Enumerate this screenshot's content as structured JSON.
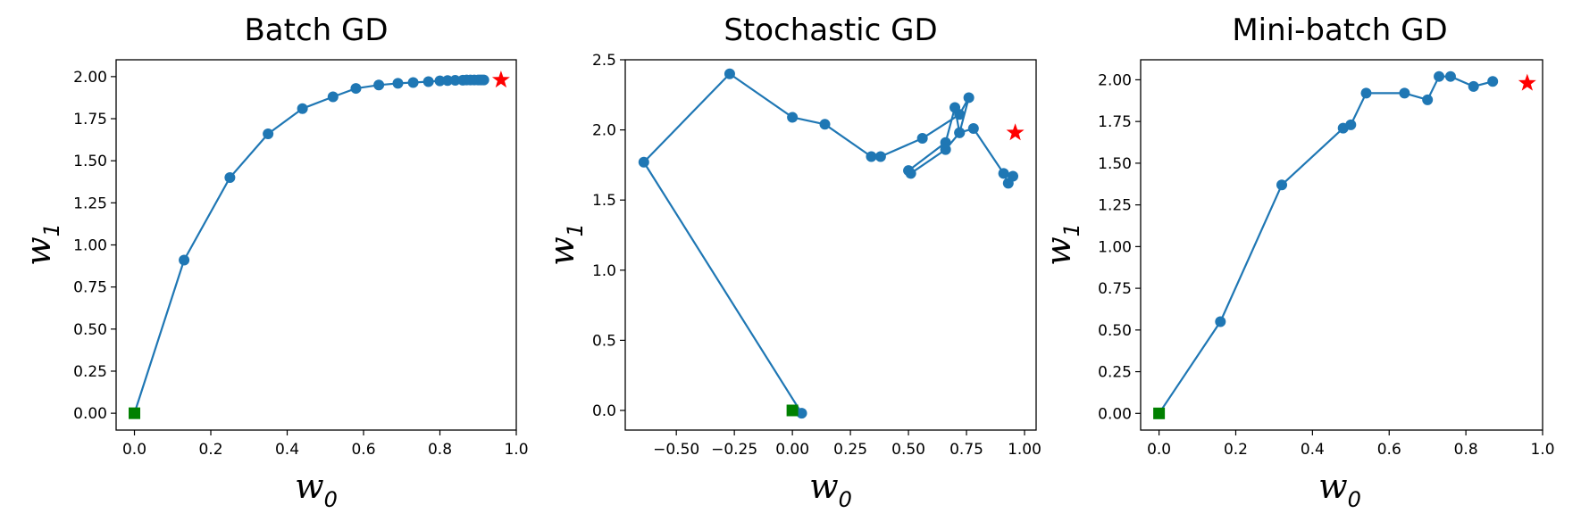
{
  "chart_data": [
    {
      "type": "line",
      "title": "Batch GD",
      "xlabel": "w",
      "xlabel_subscript": "0",
      "ylabel": "w",
      "ylabel_subscript": "1",
      "xlim": [
        -0.048,
        1.0
      ],
      "ylim": [
        -0.1,
        2.1
      ],
      "xticks": [
        0.0,
        0.2,
        0.4,
        0.6,
        0.8,
        1.0
      ],
      "xtick_labels": [
        "0.0",
        "0.2",
        "0.4",
        "0.6",
        "0.8",
        "1.0"
      ],
      "yticks": [
        0.0,
        0.25,
        0.5,
        0.75,
        1.0,
        1.25,
        1.5,
        1.75,
        2.0
      ],
      "ytick_labels": [
        "0.00",
        "0.25",
        "0.50",
        "0.75",
        "1.00",
        "1.25",
        "1.50",
        "1.75",
        "2.00"
      ],
      "series": [
        {
          "x": [
            0.0,
            0.13,
            0.25,
            0.35,
            0.44,
            0.52,
            0.58,
            0.64,
            0.69,
            0.73,
            0.77,
            0.8,
            0.82,
            0.84,
            0.86,
            0.87,
            0.88,
            0.89,
            0.9,
            0.905,
            0.91,
            0.915
          ],
          "y": [
            0.0,
            0.91,
            1.4,
            1.66,
            1.81,
            1.88,
            1.93,
            1.95,
            1.96,
            1.965,
            1.97,
            1.975,
            1.977,
            1.978,
            1.979,
            1.98,
            1.98,
            1.98,
            1.98,
            1.98,
            1.98,
            1.98
          ],
          "color": "#1f77b4"
        }
      ],
      "start_point": {
        "x": 0.0,
        "y": 0.0,
        "color": "#008000",
        "marker": "square"
      },
      "optimum": {
        "x": 0.96,
        "y": 1.98,
        "color": "#ff0000",
        "marker": "star"
      }
    },
    {
      "type": "line",
      "title": "Stochastic GD",
      "xlabel": "w",
      "xlabel_subscript": "0",
      "ylabel": "w",
      "ylabel_subscript": "1",
      "xlim": [
        -0.72,
        1.05
      ],
      "ylim": [
        -0.14,
        2.5
      ],
      "xticks": [
        -0.5,
        -0.25,
        0.0,
        0.25,
        0.5,
        0.75,
        1.0
      ],
      "xtick_labels": [
        "−0.50",
        "−0.25",
        "0.00",
        "0.25",
        "0.50",
        "0.75",
        "1.00"
      ],
      "yticks": [
        0.0,
        0.5,
        1.0,
        1.5,
        2.0,
        2.5
      ],
      "ytick_labels": [
        "0.0",
        "0.5",
        "1.0",
        "1.5",
        "2.0",
        "2.5"
      ],
      "series": [
        {
          "x": [
            0.0,
            0.04,
            -0.64,
            -0.27,
            0.0,
            0.14,
            0.34,
            0.38,
            0.56,
            0.72,
            0.76,
            0.72,
            0.7,
            0.66,
            0.5,
            0.51,
            0.66,
            0.72,
            0.78,
            0.91,
            0.93,
            0.95
          ],
          "y": [
            0.0,
            -0.02,
            1.77,
            2.4,
            2.09,
            2.04,
            1.81,
            1.81,
            1.94,
            2.11,
            2.23,
            1.98,
            2.16,
            1.91,
            1.71,
            1.69,
            1.86,
            1.98,
            2.01,
            1.69,
            1.62,
            1.67
          ],
          "color": "#1f77b4"
        }
      ],
      "start_point": {
        "x": 0.0,
        "y": 0.0,
        "color": "#008000",
        "marker": "square"
      },
      "optimum": {
        "x": 0.96,
        "y": 1.98,
        "color": "#ff0000",
        "marker": "star"
      }
    },
    {
      "type": "line",
      "title": "Mini-batch GD",
      "xlabel": "w",
      "xlabel_subscript": "0",
      "ylabel": "w",
      "ylabel_subscript": "1",
      "xlim": [
        -0.048,
        1.0
      ],
      "ylim": [
        -0.1,
        2.12
      ],
      "xticks": [
        0.0,
        0.2,
        0.4,
        0.6,
        0.8,
        1.0
      ],
      "xtick_labels": [
        "0.0",
        "0.2",
        "0.4",
        "0.6",
        "0.8",
        "1.0"
      ],
      "yticks": [
        0.0,
        0.25,
        0.5,
        0.75,
        1.0,
        1.25,
        1.5,
        1.75,
        2.0
      ],
      "ytick_labels": [
        "0.00",
        "0.25",
        "0.50",
        "0.75",
        "1.00",
        "1.25",
        "1.50",
        "1.75",
        "2.00"
      ],
      "series": [
        {
          "x": [
            0.0,
            0.16,
            0.32,
            0.48,
            0.5,
            0.54,
            0.64,
            0.7,
            0.73,
            0.76,
            0.82,
            0.87
          ],
          "y": [
            0.0,
            0.55,
            1.37,
            1.71,
            1.73,
            1.92,
            1.92,
            1.88,
            2.02,
            2.02,
            1.96,
            1.99
          ],
          "color": "#1f77b4"
        }
      ],
      "start_point": {
        "x": 0.0,
        "y": 0.0,
        "color": "#008000",
        "marker": "square"
      },
      "optimum": {
        "x": 0.96,
        "y": 1.98,
        "color": "#ff0000",
        "marker": "star"
      }
    }
  ]
}
